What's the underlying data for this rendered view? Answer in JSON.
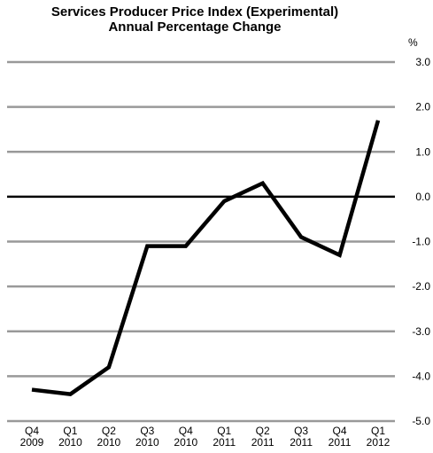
{
  "chart_data": {
    "type": "line",
    "title_lines": [
      "Services Producer Price Index (Experimental)",
      "Annual Percentage Change"
    ],
    "ylabel": "%",
    "ylim": [
      -5.0,
      3.0
    ],
    "yticks": [
      "3.0",
      "2.0",
      "1.0",
      "0.0",
      "-1.0",
      "-2.0",
      "-3.0",
      "-4.0",
      "-5.0"
    ],
    "ytick_values": [
      3,
      2,
      1,
      0,
      -1,
      -2,
      -3,
      -4,
      -5
    ],
    "categories": [
      {
        "q": "Q4",
        "y": "2009"
      },
      {
        "q": "Q1",
        "y": "2010"
      },
      {
        "q": "Q2",
        "y": "2010"
      },
      {
        "q": "Q3",
        "y": "2010"
      },
      {
        "q": "Q4",
        "y": "2010"
      },
      {
        "q": "Q1",
        "y": "2011"
      },
      {
        "q": "Q2",
        "y": "2011"
      },
      {
        "q": "Q3",
        "y": "2011"
      },
      {
        "q": "Q4",
        "y": "2011"
      },
      {
        "q": "Q1",
        "y": "2012"
      }
    ],
    "series": [
      {
        "values": [
          -4.3,
          -4.4,
          -3.8,
          -1.1,
          -1.1,
          -0.1,
          0.3,
          -0.9,
          -1.3,
          1.7
        ]
      }
    ],
    "grid": true,
    "colors": {
      "line": "#000000",
      "grid": "#999999",
      "zero": "#000000"
    }
  }
}
